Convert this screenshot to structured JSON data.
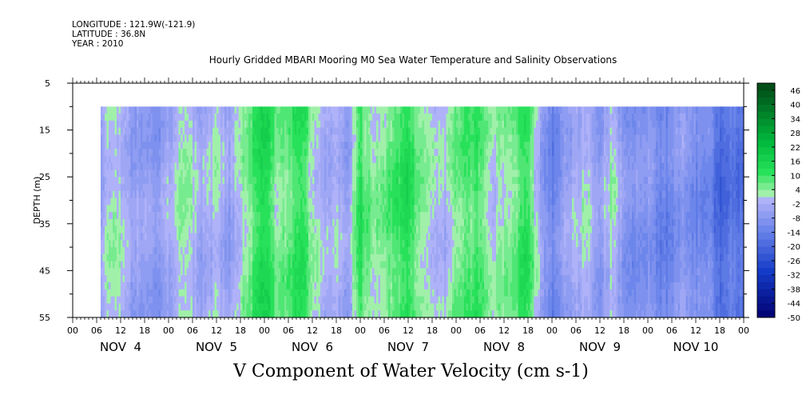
{
  "header": {
    "longitude": "LONGITUDE : 121.9W(-121.9)",
    "latitude": "LATITUDE : 36.8N",
    "year": "YEAR : 2010"
  },
  "chart_data": {
    "type": "heatmap",
    "title": "Hourly Gridded MBARI Mooring M0 Sea Water Temperature and Salinity Observations",
    "bottom_title": "V Component of Water Velocity (cm s-1)",
    "ylabel": "DEPTH (m)",
    "y_ticks": [
      "5",
      "15",
      "25",
      "35",
      "45",
      "55"
    ],
    "ylim": [
      5,
      55
    ],
    "y_reversed": true,
    "data_depth_range": [
      10,
      55
    ],
    "x_hour_ticks": [
      "00",
      "06",
      "12",
      "18",
      "00",
      "06",
      "12",
      "18",
      "00",
      "06",
      "12",
      "18",
      "00",
      "06",
      "12",
      "18",
      "00",
      "06",
      "12",
      "18",
      "00",
      "06",
      "12",
      "18",
      "00",
      "06",
      "12",
      "18",
      "00"
    ],
    "x_day_labels": [
      "NOV  4",
      "NOV  5",
      "NOV  6",
      "NOV  7",
      "NOV  8",
      "NOV  9",
      "NOV 10"
    ],
    "x_range_hours": [
      0,
      168
    ],
    "data_start_hour": 7,
    "colorbar_labels": [
      "46",
      "40",
      "34",
      "28",
      "22",
      "16",
      "10",
      "4",
      "-2",
      "-8",
      "-14",
      "-20",
      "-26",
      "-32",
      "-38",
      "-44",
      "-50"
    ],
    "colorbar_range": [
      -50,
      49
    ],
    "colorbar_step": 3,
    "v_profile_hours": [
      7,
      9,
      12,
      15,
      18,
      21,
      24,
      27,
      30,
      33,
      36,
      39,
      42,
      45,
      48,
      51,
      54,
      57,
      60,
      63,
      66,
      69,
      72,
      75,
      78,
      81,
      84,
      87,
      90,
      93,
      96,
      99,
      102,
      105,
      108,
      111,
      114,
      117,
      120,
      123,
      126,
      129,
      132,
      135,
      138,
      141,
      144,
      147,
      150,
      153,
      156,
      159,
      162,
      165,
      168
    ],
    "v_profile_values": [
      -4,
      2,
      0,
      -6,
      -4,
      -9,
      -3,
      3,
      0,
      -4,
      0,
      -6,
      2,
      8,
      16,
      5,
      6,
      14,
      3,
      -3,
      0,
      -5,
      12,
      3,
      5,
      10,
      13,
      3,
      2,
      -2,
      6,
      8,
      10,
      0,
      4,
      7,
      12,
      -4,
      -13,
      -6,
      -2,
      0,
      -6,
      2,
      -8,
      -10,
      -7,
      -14,
      -12,
      -6,
      -12,
      -10,
      -20,
      -16,
      -18
    ]
  }
}
